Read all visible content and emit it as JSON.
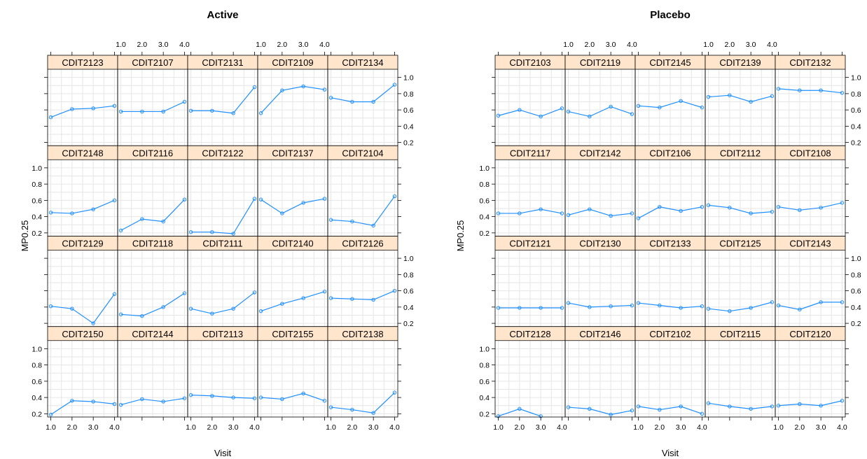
{
  "chart_data": [
    {
      "type": "line",
      "title": "Active",
      "xlabel": "Visit",
      "ylabel": "MP0.25",
      "x": [
        1,
        2,
        3,
        4
      ],
      "x_ticks": [
        "1.0",
        "2.0",
        "3.0",
        "4.0"
      ],
      "y_ticks": [
        "0.2",
        "0.4",
        "0.6",
        "0.8",
        "1.0"
      ],
      "xlim": [
        0.85,
        4.15
      ],
      "ylim": [
        0.16,
        1.1
      ],
      "grid": true,
      "line_color": "#1f8fff",
      "strip_color": "#ffe5cc",
      "panels": [
        {
          "name": "CDIT2123",
          "values": [
            0.51,
            0.61,
            0.62,
            0.65
          ]
        },
        {
          "name": "CDIT2107",
          "values": [
            0.58,
            0.58,
            0.58,
            0.7
          ]
        },
        {
          "name": "CDIT2131",
          "values": [
            0.59,
            0.59,
            0.56,
            0.88
          ]
        },
        {
          "name": "CDIT2109",
          "values": [
            0.56,
            0.84,
            0.89,
            0.85
          ]
        },
        {
          "name": "CDIT2134",
          "values": [
            0.75,
            0.7,
            0.7,
            0.91
          ]
        },
        {
          "name": "CDIT2148",
          "values": [
            0.45,
            0.44,
            0.49,
            0.6
          ]
        },
        {
          "name": "CDIT2116",
          "values": [
            0.23,
            0.37,
            0.34,
            0.61
          ]
        },
        {
          "name": "CDIT2122",
          "values": [
            0.21,
            0.21,
            0.19,
            0.62
          ]
        },
        {
          "name": "CDIT2137",
          "values": [
            0.61,
            0.44,
            0.57,
            0.62
          ]
        },
        {
          "name": "CDIT2104",
          "values": [
            0.36,
            0.34,
            0.29,
            0.65
          ]
        },
        {
          "name": "CDIT2129",
          "values": [
            0.41,
            0.38,
            0.2,
            0.56
          ]
        },
        {
          "name": "CDIT2118",
          "values": [
            0.31,
            0.29,
            0.4,
            0.57
          ]
        },
        {
          "name": "CDIT2111",
          "values": [
            0.38,
            0.32,
            0.38,
            0.58
          ]
        },
        {
          "name": "CDIT2140",
          "values": [
            0.35,
            0.44,
            0.51,
            0.59
          ]
        },
        {
          "name": "CDIT2126",
          "values": [
            0.51,
            0.5,
            0.49,
            0.6
          ]
        },
        {
          "name": "CDIT2150",
          "values": [
            0.19,
            0.36,
            0.35,
            0.32
          ]
        },
        {
          "name": "CDIT2144",
          "values": [
            0.31,
            0.38,
            0.35,
            0.39
          ]
        },
        {
          "name": "CDIT2113",
          "values": [
            0.43,
            0.42,
            0.4,
            0.39
          ]
        },
        {
          "name": "CDIT2155",
          "values": [
            0.4,
            0.38,
            0.45,
            0.36
          ]
        },
        {
          "name": "CDIT2138",
          "values": [
            0.28,
            0.25,
            0.21,
            0.46
          ]
        }
      ]
    },
    {
      "type": "line",
      "title": "Placebo",
      "xlabel": "Visit",
      "ylabel": "MP0.25",
      "x": [
        1,
        2,
        3,
        4
      ],
      "x_ticks": [
        "1.0",
        "2.0",
        "3.0",
        "4.0"
      ],
      "y_ticks": [
        "0.2",
        "0.4",
        "0.6",
        "0.8",
        "1.0"
      ],
      "xlim": [
        0.85,
        4.15
      ],
      "ylim": [
        0.16,
        1.1
      ],
      "grid": true,
      "line_color": "#1f8fff",
      "strip_color": "#ffe5cc",
      "panels": [
        {
          "name": "CDIT2103",
          "values": [
            0.53,
            0.6,
            0.52,
            0.62
          ]
        },
        {
          "name": "CDIT2119",
          "values": [
            0.58,
            0.52,
            0.64,
            0.55
          ]
        },
        {
          "name": "CDIT2145",
          "values": [
            0.65,
            0.63,
            0.71,
            0.63
          ]
        },
        {
          "name": "CDIT2139",
          "values": [
            0.76,
            0.78,
            0.7,
            0.77
          ]
        },
        {
          "name": "CDIT2132",
          "values": [
            0.86,
            0.84,
            0.84,
            0.81
          ]
        },
        {
          "name": "CDIT2117",
          "values": [
            0.44,
            0.44,
            0.49,
            0.44
          ]
        },
        {
          "name": "CDIT2142",
          "values": [
            0.42,
            0.49,
            0.41,
            0.44
          ]
        },
        {
          "name": "CDIT2106",
          "values": [
            0.38,
            0.52,
            0.47,
            0.52
          ]
        },
        {
          "name": "CDIT2112",
          "values": [
            0.54,
            0.51,
            0.44,
            0.46
          ]
        },
        {
          "name": "CDIT2108",
          "values": [
            0.52,
            0.48,
            0.51,
            0.57
          ]
        },
        {
          "name": "CDIT2121",
          "values": [
            0.39,
            0.39,
            0.39,
            0.39
          ]
        },
        {
          "name": "CDIT2130",
          "values": [
            0.45,
            0.4,
            0.41,
            0.42
          ]
        },
        {
          "name": "CDIT2133",
          "values": [
            0.45,
            0.42,
            0.39,
            0.41
          ]
        },
        {
          "name": "CDIT2125",
          "values": [
            0.38,
            0.35,
            0.39,
            0.46
          ]
        },
        {
          "name": "CDIT2143",
          "values": [
            0.42,
            0.37,
            0.46,
            0.46
          ]
        },
        {
          "name": "CDIT2128",
          "values": [
            0.17,
            0.26,
            0.17,
            null
          ]
        },
        {
          "name": "CDIT2146",
          "values": [
            0.28,
            0.26,
            0.19,
            0.24
          ]
        },
        {
          "name": "CDIT2102",
          "values": [
            0.29,
            0.25,
            0.29,
            0.2
          ]
        },
        {
          "name": "CDIT2115",
          "values": [
            0.33,
            0.29,
            0.26,
            0.29
          ]
        },
        {
          "name": "CDIT2120",
          "values": [
            0.3,
            0.32,
            0.3,
            0.36
          ]
        }
      ]
    }
  ]
}
